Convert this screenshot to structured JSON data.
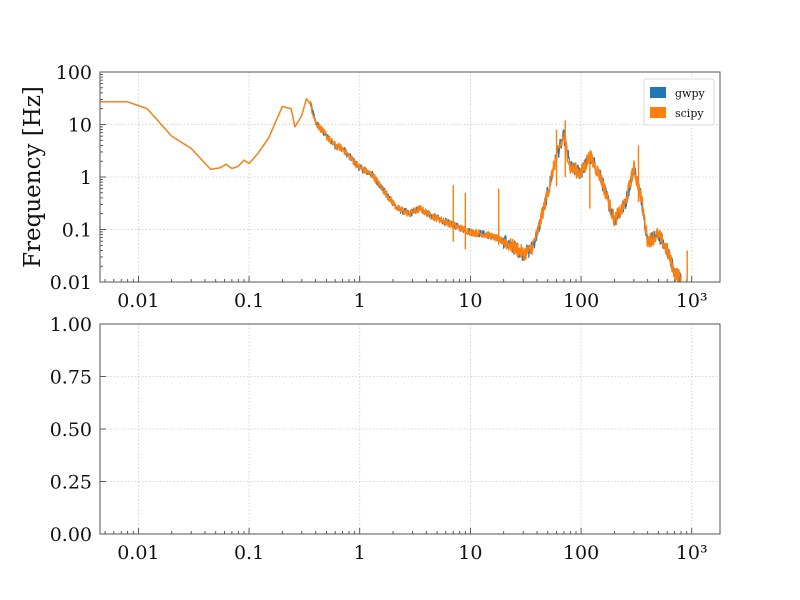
{
  "chart_data": [
    {
      "type": "line",
      "title": "",
      "xlabel": "",
      "ylabel": "Frequency [Hz]",
      "xscale": "log",
      "yscale": "log",
      "xlim": [
        0.0045,
        1800
      ],
      "ylim": [
        0.01,
        100
      ],
      "grid": true,
      "legend_position": "top-right",
      "xticks": [
        {
          "value": 0.01,
          "label": "0.01"
        },
        {
          "value": 0.1,
          "label": "0.1"
        },
        {
          "value": 1,
          "label": "1"
        },
        {
          "value": 10,
          "label": "10"
        },
        {
          "value": 100,
          "label": "100"
        },
        {
          "value": 1000,
          "label": "10³"
        }
      ],
      "yticks": [
        {
          "value": 0.01,
          "label": "0.01"
        },
        {
          "value": 0.1,
          "label": "0.1"
        },
        {
          "value": 1,
          "label": "1"
        },
        {
          "value": 10,
          "label": "10"
        },
        {
          "value": 100,
          "label": "100"
        }
      ],
      "series": [
        {
          "name": "gwpy",
          "color": "#1f77b4",
          "x": [
            0.0045,
            0.008,
            0.012,
            0.02,
            0.03,
            0.045,
            0.055,
            0.062,
            0.07,
            0.08,
            0.09,
            0.1,
            0.12,
            0.15,
            0.2,
            0.24,
            0.26,
            0.3,
            0.33,
            0.36,
            0.4,
            0.5,
            0.6,
            0.7,
            0.8,
            1,
            1.3,
            1.7,
            2.2,
            2.8,
            3.5,
            4.5,
            5.5,
            7,
            10,
            14,
            20,
            25,
            30,
            35,
            40,
            50,
            60,
            70,
            80,
            100,
            120,
            150,
            200,
            250,
            300,
            350,
            400,
            500,
            600,
            700,
            800
          ],
          "y": [
            27,
            27,
            20,
            6,
            3.5,
            1.4,
            1.5,
            1.75,
            1.45,
            1.6,
            2.1,
            1.8,
            2.8,
            5.5,
            22,
            20,
            9,
            15,
            31,
            24,
            11,
            6,
            4,
            3.5,
            2.5,
            1.5,
            1.1,
            0.5,
            0.25,
            0.2,
            0.25,
            0.18,
            0.15,
            0.12,
            0.09,
            0.08,
            0.06,
            0.045,
            0.035,
            0.04,
            0.08,
            0.5,
            2.5,
            6,
            1.5,
            1.2,
            2.5,
            1,
            0.15,
            0.3,
            1.5,
            0.4,
            0.06,
            0.08,
            0.04,
            0.015,
            0.012
          ]
        },
        {
          "name": "scipy",
          "color": "#ff7f0e",
          "x": [
            0.0045,
            0.008,
            0.012,
            0.02,
            0.03,
            0.045,
            0.055,
            0.062,
            0.07,
            0.08,
            0.09,
            0.1,
            0.12,
            0.15,
            0.2,
            0.24,
            0.26,
            0.3,
            0.33,
            0.36,
            0.4,
            0.5,
            0.6,
            0.7,
            0.8,
            1,
            1.3,
            1.7,
            2.2,
            2.8,
            3.5,
            4.5,
            5.5,
            7,
            10,
            14,
            20,
            25,
            30,
            35,
            40,
            50,
            60,
            70,
            80,
            100,
            120,
            150,
            200,
            250,
            300,
            350,
            400,
            500,
            600,
            700,
            800
          ],
          "y": [
            27,
            27,
            20,
            6,
            3.5,
            1.4,
            1.5,
            1.75,
            1.45,
            1.6,
            2.1,
            1.8,
            2.8,
            5.5,
            22,
            20,
            9,
            15,
            31,
            24,
            11,
            6,
            4,
            3.5,
            2.5,
            1.5,
            1.1,
            0.5,
            0.25,
            0.2,
            0.25,
            0.18,
            0.15,
            0.12,
            0.09,
            0.08,
            0.06,
            0.045,
            0.035,
            0.04,
            0.08,
            0.5,
            2.5,
            6,
            1.5,
            1.2,
            2.5,
            1,
            0.15,
            0.3,
            1.5,
            0.4,
            0.06,
            0.08,
            0.04,
            0.015,
            0.012
          ]
        }
      ],
      "spikes": [
        {
          "x": 7,
          "y": 0.7
        },
        {
          "x": 9,
          "y": 0.5
        },
        {
          "x": 18,
          "y": 0.6
        },
        {
          "x": 60,
          "y": 8
        },
        {
          "x": 72,
          "y": 12
        },
        {
          "x": 120,
          "y": 3
        },
        {
          "x": 330,
          "y": 4
        },
        {
          "x": 910,
          "y": 0.04
        }
      ]
    },
    {
      "type": "line",
      "title": "",
      "xlabel": "",
      "ylabel": "",
      "xscale": "log",
      "yscale": "linear",
      "xlim": [
        0.0045,
        1800
      ],
      "ylim": [
        0,
        1
      ],
      "grid": true,
      "xticks": [
        {
          "value": 0.01,
          "label": "0.01"
        },
        {
          "value": 0.1,
          "label": "0.1"
        },
        {
          "value": 1,
          "label": "1"
        },
        {
          "value": 10,
          "label": "10"
        },
        {
          "value": 100,
          "label": "100"
        },
        {
          "value": 1000,
          "label": "10³"
        }
      ],
      "yticks": [
        {
          "value": 0,
          "label": "0.00"
        },
        {
          "value": 0.25,
          "label": "0.25"
        },
        {
          "value": 0.5,
          "label": "0.50"
        },
        {
          "value": 0.75,
          "label": "0.75"
        },
        {
          "value": 1,
          "label": "1.00"
        }
      ],
      "series": []
    }
  ]
}
